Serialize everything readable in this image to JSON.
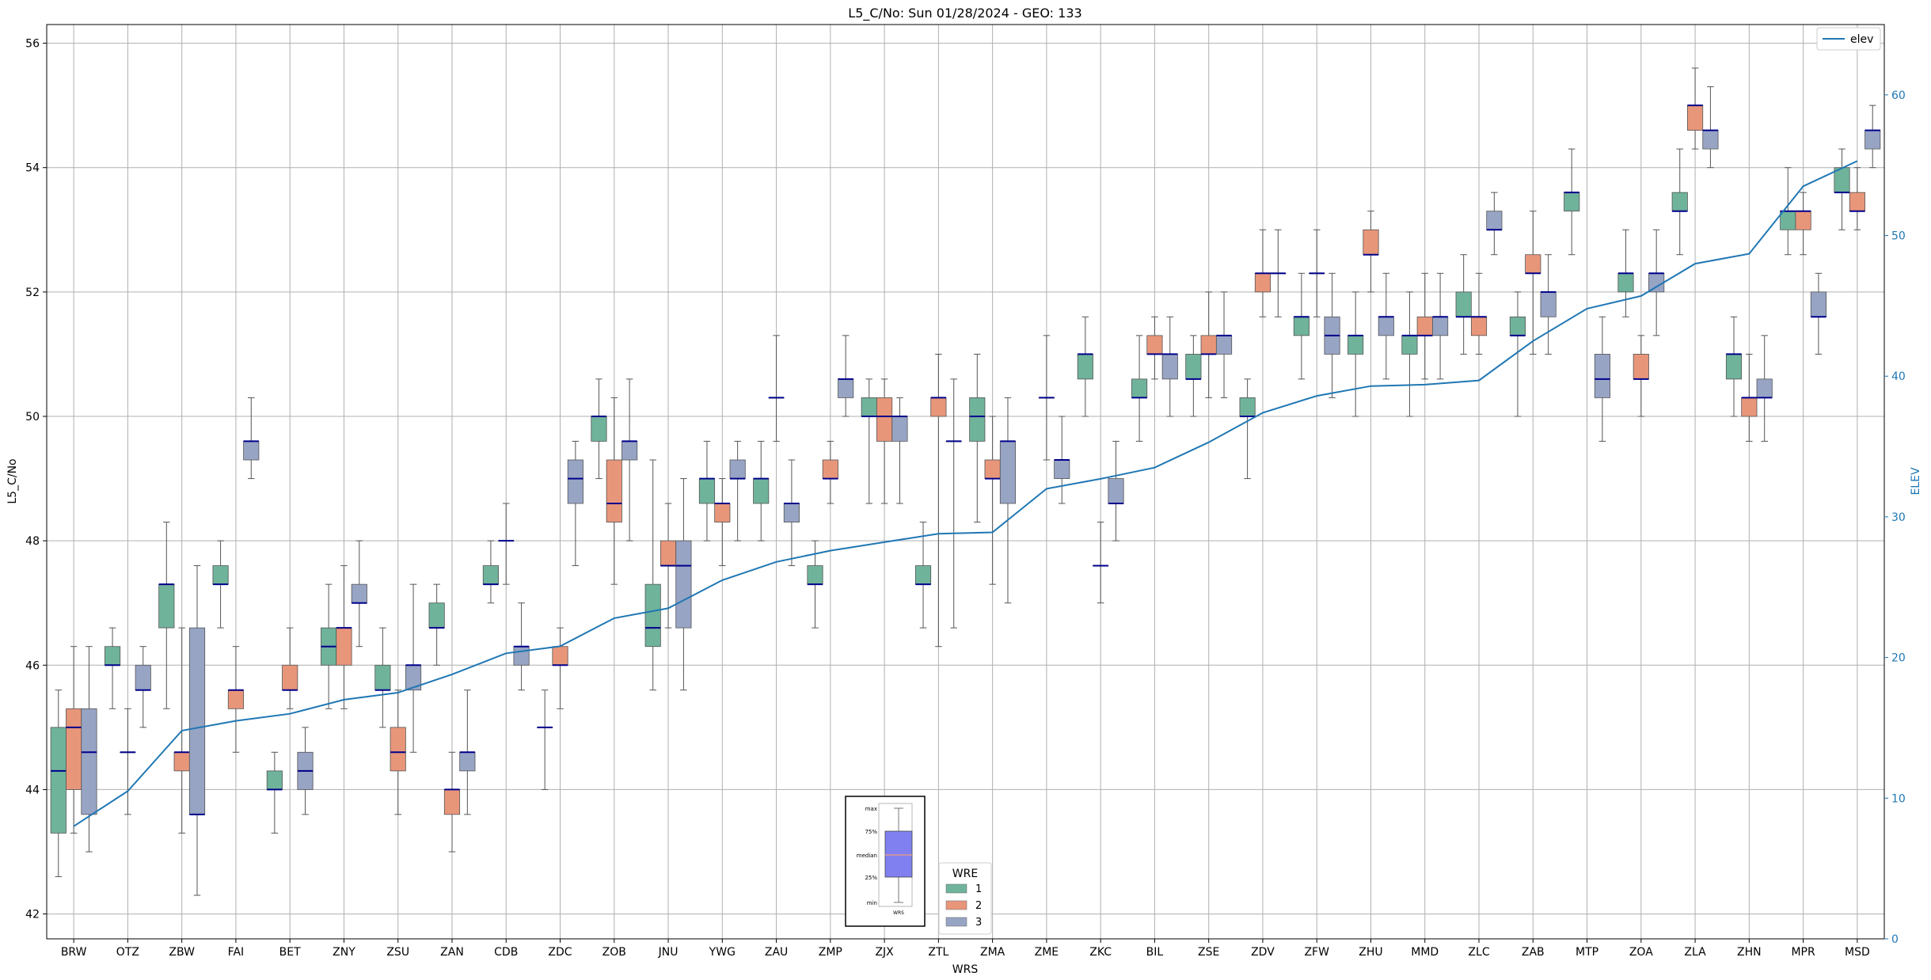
{
  "chart_data": {
    "type": "box",
    "title": "L5_C/No: Sun 01/28/2024 - GEO: 133",
    "xlabel": "WRS",
    "ylabel": "L5_C/No",
    "y2label": "ELEV",
    "ylim": [
      41.6,
      56.3
    ],
    "y2lim": [
      0,
      65
    ],
    "yticks": [
      42,
      44,
      46,
      48,
      50,
      52,
      54,
      56
    ],
    "y2ticks": [
      0,
      10,
      20,
      30,
      40,
      50,
      60
    ],
    "grid": true,
    "categories": [
      "BRW",
      "OTZ",
      "ZBW",
      "FAI",
      "BET",
      "ZNY",
      "ZSU",
      "ZAN",
      "CDB",
      "ZDC",
      "ZOB",
      "JNU",
      "YWG",
      "ZAU",
      "ZMP",
      "ZJX",
      "ZTL",
      "ZMA",
      "ZME",
      "ZKC",
      "BIL",
      "ZSE",
      "ZDV",
      "ZFW",
      "ZHU",
      "MMD",
      "ZLC",
      "ZAB",
      "MTP",
      "ZOA",
      "ZLA",
      "ZHN",
      "MPR",
      "MSD"
    ],
    "hue_legend": {
      "title": "WRE",
      "entries": [
        {
          "label": "1",
          "color": "#6fb39b"
        },
        {
          "label": "2",
          "color": "#e8967a"
        },
        {
          "label": "3",
          "color": "#97a4c4"
        }
      ]
    },
    "median_color": "#00008b",
    "line_legend": {
      "label": "elev",
      "color": "#1f77b4",
      "position": "top-right"
    },
    "key_legend": {
      "labels": [
        "max",
        "75%",
        "median",
        "25%",
        "min"
      ],
      "xlabel": "WRS",
      "box_color": "#8080f0",
      "median_color": "#f0a080"
    },
    "boxes": [
      {
        "cat": "BRW",
        "wre": 1,
        "min": 42.6,
        "q1": 43.3,
        "median": 44.3,
        "q3": 45.0,
        "max": 45.6
      },
      {
        "cat": "BRW",
        "wre": 2,
        "min": 43.3,
        "q1": 44.0,
        "median": 45.0,
        "q3": 45.3,
        "max": 46.3
      },
      {
        "cat": "BRW",
        "wre": 3,
        "min": 43.0,
        "q1": 43.6,
        "median": 44.6,
        "q3": 45.3,
        "max": 46.3
      },
      {
        "cat": "OTZ",
        "wre": 1,
        "min": 45.3,
        "q1": 46.0,
        "median": 46.0,
        "q3": 46.3,
        "max": 46.6
      },
      {
        "cat": "OTZ",
        "wre": 2,
        "min": 43.6,
        "q1": 44.6,
        "median": 44.6,
        "q3": 44.6,
        "max": 45.3
      },
      {
        "cat": "OTZ",
        "wre": 3,
        "min": 45.0,
        "q1": 45.6,
        "median": 45.6,
        "q3": 46.0,
        "max": 46.3
      },
      {
        "cat": "ZBW",
        "wre": 1,
        "min": 45.3,
        "q1": 46.6,
        "median": 47.3,
        "q3": 47.3,
        "max": 48.3
      },
      {
        "cat": "ZBW",
        "wre": 2,
        "min": 43.3,
        "q1": 44.3,
        "median": 44.6,
        "q3": 44.6,
        "max": 46.6
      },
      {
        "cat": "ZBW",
        "wre": 3,
        "min": 42.3,
        "q1": 43.6,
        "median": 43.6,
        "q3": 46.6,
        "max": 47.6
      },
      {
        "cat": "FAI",
        "wre": 1,
        "min": 46.6,
        "q1": 47.3,
        "median": 47.3,
        "q3": 47.6,
        "max": 48.0
      },
      {
        "cat": "FAI",
        "wre": 2,
        "min": 44.6,
        "q1": 45.3,
        "median": 45.6,
        "q3": 45.6,
        "max": 46.3
      },
      {
        "cat": "FAI",
        "wre": 3,
        "min": 49.0,
        "q1": 49.3,
        "median": 49.6,
        "q3": 49.6,
        "max": 50.3
      },
      {
        "cat": "BET",
        "wre": 1,
        "min": 43.3,
        "q1": 44.0,
        "median": 44.0,
        "q3": 44.3,
        "max": 44.6
      },
      {
        "cat": "BET",
        "wre": 2,
        "min": 45.3,
        "q1": 45.6,
        "median": 45.6,
        "q3": 46.0,
        "max": 46.6
      },
      {
        "cat": "BET",
        "wre": 3,
        "min": 43.6,
        "q1": 44.0,
        "median": 44.3,
        "q3": 44.6,
        "max": 45.0
      },
      {
        "cat": "ZNY",
        "wre": 1,
        "min": 45.3,
        "q1": 46.0,
        "median": 46.3,
        "q3": 46.6,
        "max": 47.3
      },
      {
        "cat": "ZNY",
        "wre": 2,
        "min": 45.3,
        "q1": 46.0,
        "median": 46.6,
        "q3": 46.6,
        "max": 47.6
      },
      {
        "cat": "ZNY",
        "wre": 3,
        "min": 46.3,
        "q1": 47.0,
        "median": 47.0,
        "q3": 47.3,
        "max": 48.0
      },
      {
        "cat": "ZSU",
        "wre": 1,
        "min": 45.0,
        "q1": 45.6,
        "median": 45.6,
        "q3": 46.0,
        "max": 46.6
      },
      {
        "cat": "ZSU",
        "wre": 2,
        "min": 43.6,
        "q1": 44.3,
        "median": 44.6,
        "q3": 45.0,
        "max": 45.6
      },
      {
        "cat": "ZSU",
        "wre": 3,
        "min": 44.6,
        "q1": 45.6,
        "median": 46.0,
        "q3": 46.0,
        "max": 47.3
      },
      {
        "cat": "ZAN",
        "wre": 1,
        "min": 46.0,
        "q1": 46.6,
        "median": 46.6,
        "q3": 47.0,
        "max": 47.3
      },
      {
        "cat": "ZAN",
        "wre": 2,
        "min": 43.0,
        "q1": 43.6,
        "median": 44.0,
        "q3": 44.0,
        "max": 44.6
      },
      {
        "cat": "ZAN",
        "wre": 3,
        "min": 43.6,
        "q1": 44.3,
        "median": 44.6,
        "q3": 44.6,
        "max": 45.6
      },
      {
        "cat": "CDB",
        "wre": 1,
        "min": 47.0,
        "q1": 47.3,
        "median": 47.3,
        "q3": 47.6,
        "max": 48.0
      },
      {
        "cat": "CDB",
        "wre": 2,
        "min": 47.3,
        "q1": 48.0,
        "median": 48.0,
        "q3": 48.0,
        "max": 48.6
      },
      {
        "cat": "CDB",
        "wre": 3,
        "min": 45.6,
        "q1": 46.0,
        "median": 46.3,
        "q3": 46.3,
        "max": 47.0
      },
      {
        "cat": "ZDC",
        "wre": 1,
        "min": 44.0,
        "q1": 45.0,
        "median": 45.0,
        "q3": 45.0,
        "max": 45.6
      },
      {
        "cat": "ZDC",
        "wre": 2,
        "min": 45.3,
        "q1": 46.0,
        "median": 46.0,
        "q3": 46.3,
        "max": 46.6
      },
      {
        "cat": "ZDC",
        "wre": 3,
        "min": 47.6,
        "q1": 48.6,
        "median": 49.0,
        "q3": 49.3,
        "max": 49.6
      },
      {
        "cat": "ZOB",
        "wre": 1,
        "min": 49.0,
        "q1": 49.6,
        "median": 50.0,
        "q3": 50.0,
        "max": 50.6
      },
      {
        "cat": "ZOB",
        "wre": 2,
        "min": 47.3,
        "q1": 48.3,
        "median": 48.6,
        "q3": 49.3,
        "max": 50.3
      },
      {
        "cat": "ZOB",
        "wre": 3,
        "min": 48.0,
        "q1": 49.3,
        "median": 49.6,
        "q3": 49.6,
        "max": 50.6
      },
      {
        "cat": "JNU",
        "wre": 1,
        "min": 45.6,
        "q1": 46.3,
        "median": 46.6,
        "q3": 47.3,
        "max": 49.3
      },
      {
        "cat": "JNU",
        "wre": 2,
        "min": 46.6,
        "q1": 47.6,
        "median": 47.6,
        "q3": 48.0,
        "max": 48.6
      },
      {
        "cat": "JNU",
        "wre": 3,
        "min": 45.6,
        "q1": 46.6,
        "median": 47.6,
        "q3": 48.0,
        "max": 49.0
      },
      {
        "cat": "YWG",
        "wre": 1,
        "min": 48.0,
        "q1": 48.6,
        "median": 49.0,
        "q3": 49.0,
        "max": 49.6
      },
      {
        "cat": "YWG",
        "wre": 2,
        "min": 47.6,
        "q1": 48.3,
        "median": 48.6,
        "q3": 48.6,
        "max": 49.0
      },
      {
        "cat": "YWG",
        "wre": 3,
        "min": 48.0,
        "q1": 49.0,
        "median": 49.0,
        "q3": 49.3,
        "max": 49.6
      },
      {
        "cat": "ZAU",
        "wre": 1,
        "min": 48.0,
        "q1": 48.6,
        "median": 49.0,
        "q3": 49.0,
        "max": 49.6
      },
      {
        "cat": "ZAU",
        "wre": 2,
        "min": 49.6,
        "q1": 50.3,
        "median": 50.3,
        "q3": 50.3,
        "max": 51.3
      },
      {
        "cat": "ZAU",
        "wre": 3,
        "min": 47.6,
        "q1": 48.3,
        "median": 48.6,
        "q3": 48.6,
        "max": 49.3
      },
      {
        "cat": "ZMP",
        "wre": 1,
        "min": 46.6,
        "q1": 47.3,
        "median": 47.3,
        "q3": 47.6,
        "max": 48.0
      },
      {
        "cat": "ZMP",
        "wre": 2,
        "min": 48.6,
        "q1": 49.0,
        "median": 49.0,
        "q3": 49.3,
        "max": 49.6
      },
      {
        "cat": "ZMP",
        "wre": 3,
        "min": 50.0,
        "q1": 50.3,
        "median": 50.6,
        "q3": 50.6,
        "max": 51.3
      },
      {
        "cat": "ZJX",
        "wre": 1,
        "min": 48.6,
        "q1": 50.0,
        "median": 50.0,
        "q3": 50.3,
        "max": 50.6
      },
      {
        "cat": "ZJX",
        "wre": 2,
        "min": 48.6,
        "q1": 49.6,
        "median": 50.0,
        "q3": 50.3,
        "max": 50.6
      },
      {
        "cat": "ZJX",
        "wre": 3,
        "min": 48.6,
        "q1": 49.6,
        "median": 50.0,
        "q3": 50.0,
        "max": 50.3
      },
      {
        "cat": "ZTL",
        "wre": 1,
        "min": 46.6,
        "q1": 47.3,
        "median": 47.3,
        "q3": 47.6,
        "max": 48.3
      },
      {
        "cat": "ZTL",
        "wre": 2,
        "min": 46.3,
        "q1": 50.0,
        "median": 50.3,
        "q3": 50.3,
        "max": 51.0
      },
      {
        "cat": "ZTL",
        "wre": 3,
        "min": 46.6,
        "q1": 49.6,
        "median": 49.6,
        "q3": 49.6,
        "max": 50.6
      },
      {
        "cat": "ZMA",
        "wre": 1,
        "min": 48.3,
        "q1": 49.6,
        "median": 50.0,
        "q3": 50.3,
        "max": 51.0
      },
      {
        "cat": "ZMA",
        "wre": 2,
        "min": 47.3,
        "q1": 49.0,
        "median": 49.0,
        "q3": 49.3,
        "max": 50.0
      },
      {
        "cat": "ZMA",
        "wre": 3,
        "min": 47.0,
        "q1": 48.6,
        "median": 49.6,
        "q3": 49.6,
        "max": 50.3
      },
      {
        "cat": "ZME",
        "wre": 2,
        "min": 49.3,
        "q1": 50.3,
        "median": 50.3,
        "q3": 50.3,
        "max": 51.3
      },
      {
        "cat": "ZME",
        "wre": 3,
        "min": 48.6,
        "q1": 49.0,
        "median": 49.3,
        "q3": 49.3,
        "max": 50.0
      },
      {
        "cat": "ZKC",
        "wre": 1,
        "min": 50.0,
        "q1": 50.6,
        "median": 51.0,
        "q3": 51.0,
        "max": 51.6
      },
      {
        "cat": "ZKC",
        "wre": 2,
        "min": 47.0,
        "q1": 47.6,
        "median": 47.6,
        "q3": 47.6,
        "max": 48.3
      },
      {
        "cat": "ZKC",
        "wre": 3,
        "min": 48.0,
        "q1": 48.6,
        "median": 48.6,
        "q3": 49.0,
        "max": 49.6
      },
      {
        "cat": "BIL",
        "wre": 1,
        "min": 49.6,
        "q1": 50.3,
        "median": 50.3,
        "q3": 50.6,
        "max": 51.3
      },
      {
        "cat": "BIL",
        "wre": 2,
        "min": 50.6,
        "q1": 51.0,
        "median": 51.0,
        "q3": 51.3,
        "max": 51.6
      },
      {
        "cat": "BIL",
        "wre": 3,
        "min": 50.0,
        "q1": 50.6,
        "median": 51.0,
        "q3": 51.0,
        "max": 51.6
      },
      {
        "cat": "ZSE",
        "wre": 1,
        "min": 50.0,
        "q1": 50.6,
        "median": 50.6,
        "q3": 51.0,
        "max": 51.3
      },
      {
        "cat": "ZSE",
        "wre": 2,
        "min": 50.3,
        "q1": 51.0,
        "median": 51.0,
        "q3": 51.3,
        "max": 52.0
      },
      {
        "cat": "ZSE",
        "wre": 3,
        "min": 50.3,
        "q1": 51.0,
        "median": 51.3,
        "q3": 51.3,
        "max": 52.0
      },
      {
        "cat": "ZDV",
        "wre": 1,
        "min": 49.0,
        "q1": 50.0,
        "median": 50.0,
        "q3": 50.3,
        "max": 50.6
      },
      {
        "cat": "ZDV",
        "wre": 2,
        "min": 51.6,
        "q1": 52.0,
        "median": 52.3,
        "q3": 52.3,
        "max": 53.0
      },
      {
        "cat": "ZDV",
        "wre": 3,
        "min": 51.6,
        "q1": 52.3,
        "median": 52.3,
        "q3": 52.3,
        "max": 53.0
      },
      {
        "cat": "ZFW",
        "wre": 1,
        "min": 50.6,
        "q1": 51.3,
        "median": 51.6,
        "q3": 51.6,
        "max": 52.3
      },
      {
        "cat": "ZFW",
        "wre": 2,
        "min": 51.6,
        "q1": 52.3,
        "median": 52.3,
        "q3": 52.3,
        "max": 53.0
      },
      {
        "cat": "ZFW",
        "wre": 3,
        "min": 50.3,
        "q1": 51.0,
        "median": 51.3,
        "q3": 51.6,
        "max": 52.3
      },
      {
        "cat": "ZHU",
        "wre": 1,
        "min": 50.0,
        "q1": 51.0,
        "median": 51.3,
        "q3": 51.3,
        "max": 52.0
      },
      {
        "cat": "ZHU",
        "wre": 2,
        "min": 52.0,
        "q1": 52.6,
        "median": 52.6,
        "q3": 53.0,
        "max": 53.3
      },
      {
        "cat": "ZHU",
        "wre": 3,
        "min": 50.6,
        "q1": 51.3,
        "median": 51.6,
        "q3": 51.6,
        "max": 52.3
      },
      {
        "cat": "MMD",
        "wre": 1,
        "min": 50.0,
        "q1": 51.0,
        "median": 51.3,
        "q3": 51.3,
        "max": 52.0
      },
      {
        "cat": "MMD",
        "wre": 2,
        "min": 50.6,
        "q1": 51.3,
        "median": 51.3,
        "q3": 51.6,
        "max": 52.3
      },
      {
        "cat": "MMD",
        "wre": 3,
        "min": 50.6,
        "q1": 51.3,
        "median": 51.6,
        "q3": 51.6,
        "max": 52.3
      },
      {
        "cat": "ZLC",
        "wre": 1,
        "min": 51.0,
        "q1": 51.6,
        "median": 51.6,
        "q3": 52.0,
        "max": 52.6
      },
      {
        "cat": "ZLC",
        "wre": 2,
        "min": 51.0,
        "q1": 51.3,
        "median": 51.6,
        "q3": 51.6,
        "max": 52.3
      },
      {
        "cat": "ZLC",
        "wre": 3,
        "min": 52.6,
        "q1": 53.0,
        "median": 53.0,
        "q3": 53.3,
        "max": 53.6
      },
      {
        "cat": "ZAB",
        "wre": 1,
        "min": 50.0,
        "q1": 51.3,
        "median": 51.3,
        "q3": 51.6,
        "max": 52.0
      },
      {
        "cat": "ZAB",
        "wre": 2,
        "min": 51.0,
        "q1": 52.3,
        "median": 52.3,
        "q3": 52.6,
        "max": 53.3
      },
      {
        "cat": "ZAB",
        "wre": 3,
        "min": 51.0,
        "q1": 51.6,
        "median": 52.0,
        "q3": 52.0,
        "max": 52.6
      },
      {
        "cat": "MTP",
        "wre": 1,
        "min": 52.6,
        "q1": 53.3,
        "median": 53.6,
        "q3": 53.6,
        "max": 54.3
      },
      {
        "cat": "MTP",
        "wre": 3,
        "min": 49.6,
        "q1": 50.3,
        "median": 50.6,
        "q3": 51.0,
        "max": 51.6
      },
      {
        "cat": "ZOA",
        "wre": 1,
        "min": 51.6,
        "q1": 52.0,
        "median": 52.3,
        "q3": 52.3,
        "max": 53.0
      },
      {
        "cat": "ZOA",
        "wre": 2,
        "min": 50.0,
        "q1": 50.6,
        "median": 50.6,
        "q3": 51.0,
        "max": 51.3
      },
      {
        "cat": "ZOA",
        "wre": 3,
        "min": 51.3,
        "q1": 52.0,
        "median": 52.3,
        "q3": 52.3,
        "max": 53.0
      },
      {
        "cat": "ZLA",
        "wre": 1,
        "min": 52.6,
        "q1": 53.3,
        "median": 53.3,
        "q3": 53.6,
        "max": 54.3
      },
      {
        "cat": "ZLA",
        "wre": 2,
        "min": 54.3,
        "q1": 54.6,
        "median": 55.0,
        "q3": 55.0,
        "max": 55.6
      },
      {
        "cat": "ZLA",
        "wre": 3,
        "min": 54.0,
        "q1": 54.3,
        "median": 54.6,
        "q3": 54.6,
        "max": 55.3
      },
      {
        "cat": "ZHN",
        "wre": 1,
        "min": 50.0,
        "q1": 50.6,
        "median": 51.0,
        "q3": 51.0,
        "max": 51.6
      },
      {
        "cat": "ZHN",
        "wre": 2,
        "min": 49.6,
        "q1": 50.0,
        "median": 50.3,
        "q3": 50.3,
        "max": 51.0
      },
      {
        "cat": "ZHN",
        "wre": 3,
        "min": 49.6,
        "q1": 50.3,
        "median": 50.3,
        "q3": 50.6,
        "max": 51.3
      },
      {
        "cat": "MPR",
        "wre": 1,
        "min": 52.6,
        "q1": 53.0,
        "median": 53.3,
        "q3": 53.3,
        "max": 54.0
      },
      {
        "cat": "MPR",
        "wre": 2,
        "min": 52.6,
        "q1": 53.0,
        "median": 53.3,
        "q3": 53.3,
        "max": 53.6
      },
      {
        "cat": "MPR",
        "wre": 3,
        "min": 51.0,
        "q1": 51.6,
        "median": 51.6,
        "q3": 52.0,
        "max": 52.3
      },
      {
        "cat": "MSD",
        "wre": 1,
        "min": 53.0,
        "q1": 53.6,
        "median": 53.6,
        "q3": 54.0,
        "max": 54.3
      },
      {
        "cat": "MSD",
        "wre": 2,
        "min": 53.0,
        "q1": 53.3,
        "median": 53.3,
        "q3": 53.6,
        "max": 54.0
      },
      {
        "cat": "MSD",
        "wre": 3,
        "min": 54.0,
        "q1": 54.3,
        "median": 54.6,
        "q3": 54.6,
        "max": 55.0
      }
    ],
    "elev": [
      8.0,
      10.5,
      14.8,
      15.5,
      16.0,
      17.0,
      17.5,
      18.8,
      20.3,
      20.8,
      22.8,
      23.5,
      25.5,
      26.8,
      27.6,
      28.2,
      28.8,
      28.9,
      32.0,
      32.7,
      33.5,
      35.3,
      37.4,
      38.6,
      39.3,
      39.4,
      39.7,
      42.5,
      44.8,
      45.7,
      48.0,
      48.7,
      53.5,
      55.3
    ]
  }
}
